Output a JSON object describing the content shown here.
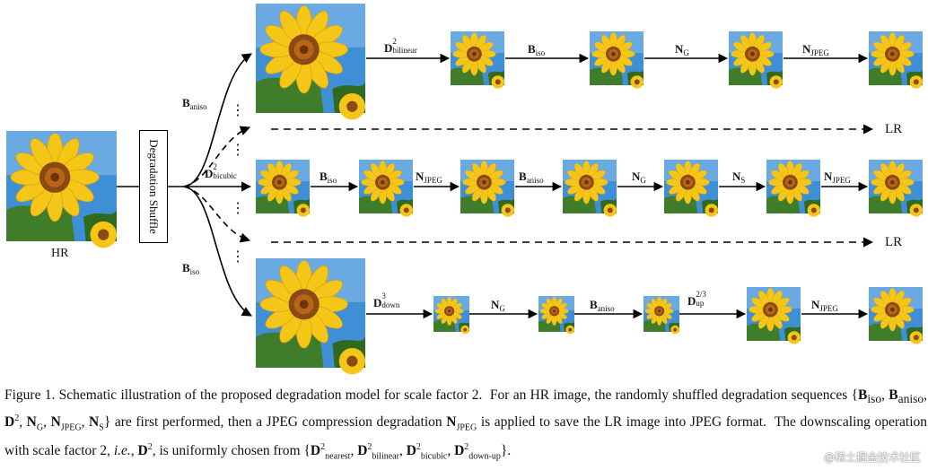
{
  "figure": {
    "hr_label": "HR",
    "lr_label": "LR",
    "shuffle_label": "Degradation Shuffle",
    "dots": "⋮",
    "branch_labels": [
      "B_aniso",
      "D²_bicubic",
      "B_iso"
    ]
  },
  "caption": {
    "fig_label": "Figure 1.",
    "text": "Schematic illustration of the proposed degradation model for scale factor 2. For an HR image, the randomly shuffled degradation sequences {B_iso, B_aniso, D², N_G, N_JPEG, N_S} are first performed, then a JPEG compression degradation N_JPEG is applied to save the LR image into JPEG format. The downscaling operation with scale factor 2, i.e., D², is uniformly chosen from {D²_nearest, D²_bilinear, D²_bicubic, D²_down-up}."
  },
  "watermark": "@稀土掘金技术社区",
  "colors": {
    "sky": "#3f8fd6",
    "petal": "#f5c518",
    "center": "#8a4a12",
    "leaf": "#3f7d2a"
  }
}
